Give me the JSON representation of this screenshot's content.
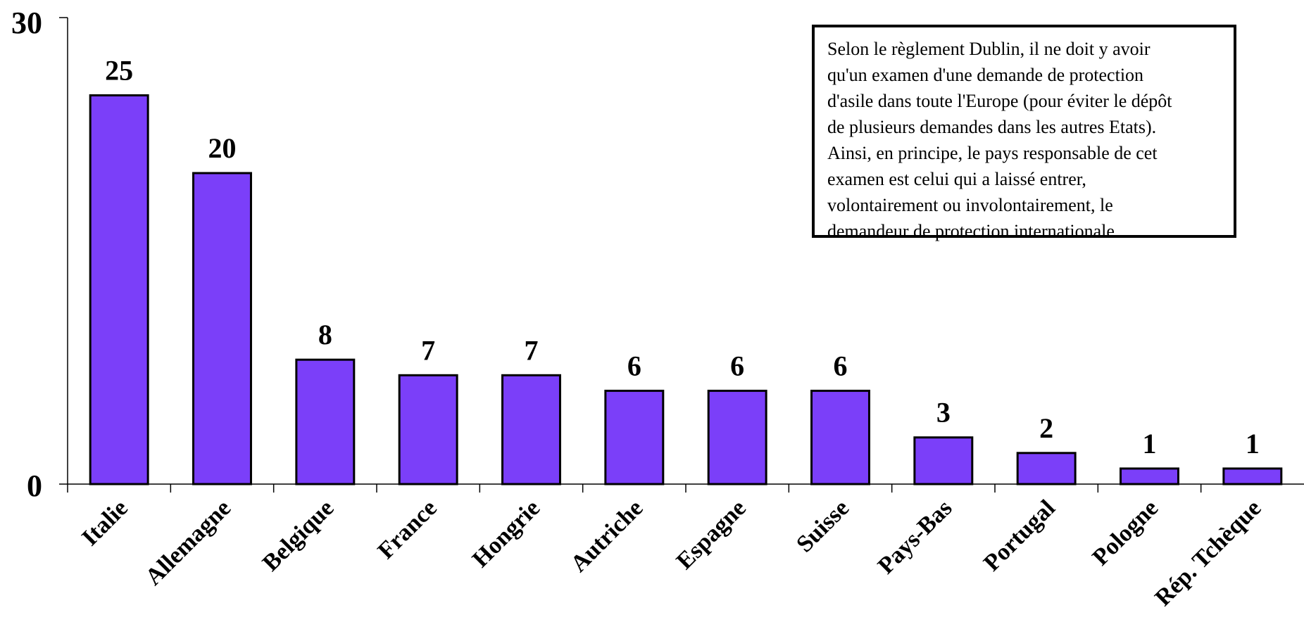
{
  "chart_data": {
    "type": "bar",
    "categories": [
      "Italie",
      "Allemagne",
      "Belgique",
      "France",
      "Hongrie",
      "Autriche",
      "Espagne",
      "Suisse",
      "Pays-Bas",
      "Portugal",
      "Pologne",
      "Rép. Tchèque"
    ],
    "values": [
      25,
      20,
      8,
      7,
      7,
      6,
      6,
      6,
      3,
      2,
      1,
      1
    ],
    "ylim": [
      0,
      30
    ],
    "y_ticks": [
      "0",
      "30"
    ],
    "grid": false,
    "title": "",
    "xlabel": "",
    "ylabel": "",
    "bar_color": "#7b3ff9",
    "annotation": [
      "Selon le règlement Dublin, il ne doit y avoir",
      "qu'un examen d'une demande de protection",
      "d'asile dans toute l'Europe (pour éviter le dépôt",
      "de plusieurs demandes dans les autres Etats).",
      "Ainsi, en principe, le pays responsable de cet",
      "examen est celui qui a laissé entrer,",
      "volontairement ou involontairement, le",
      "demandeur de protection internationale."
    ]
  }
}
